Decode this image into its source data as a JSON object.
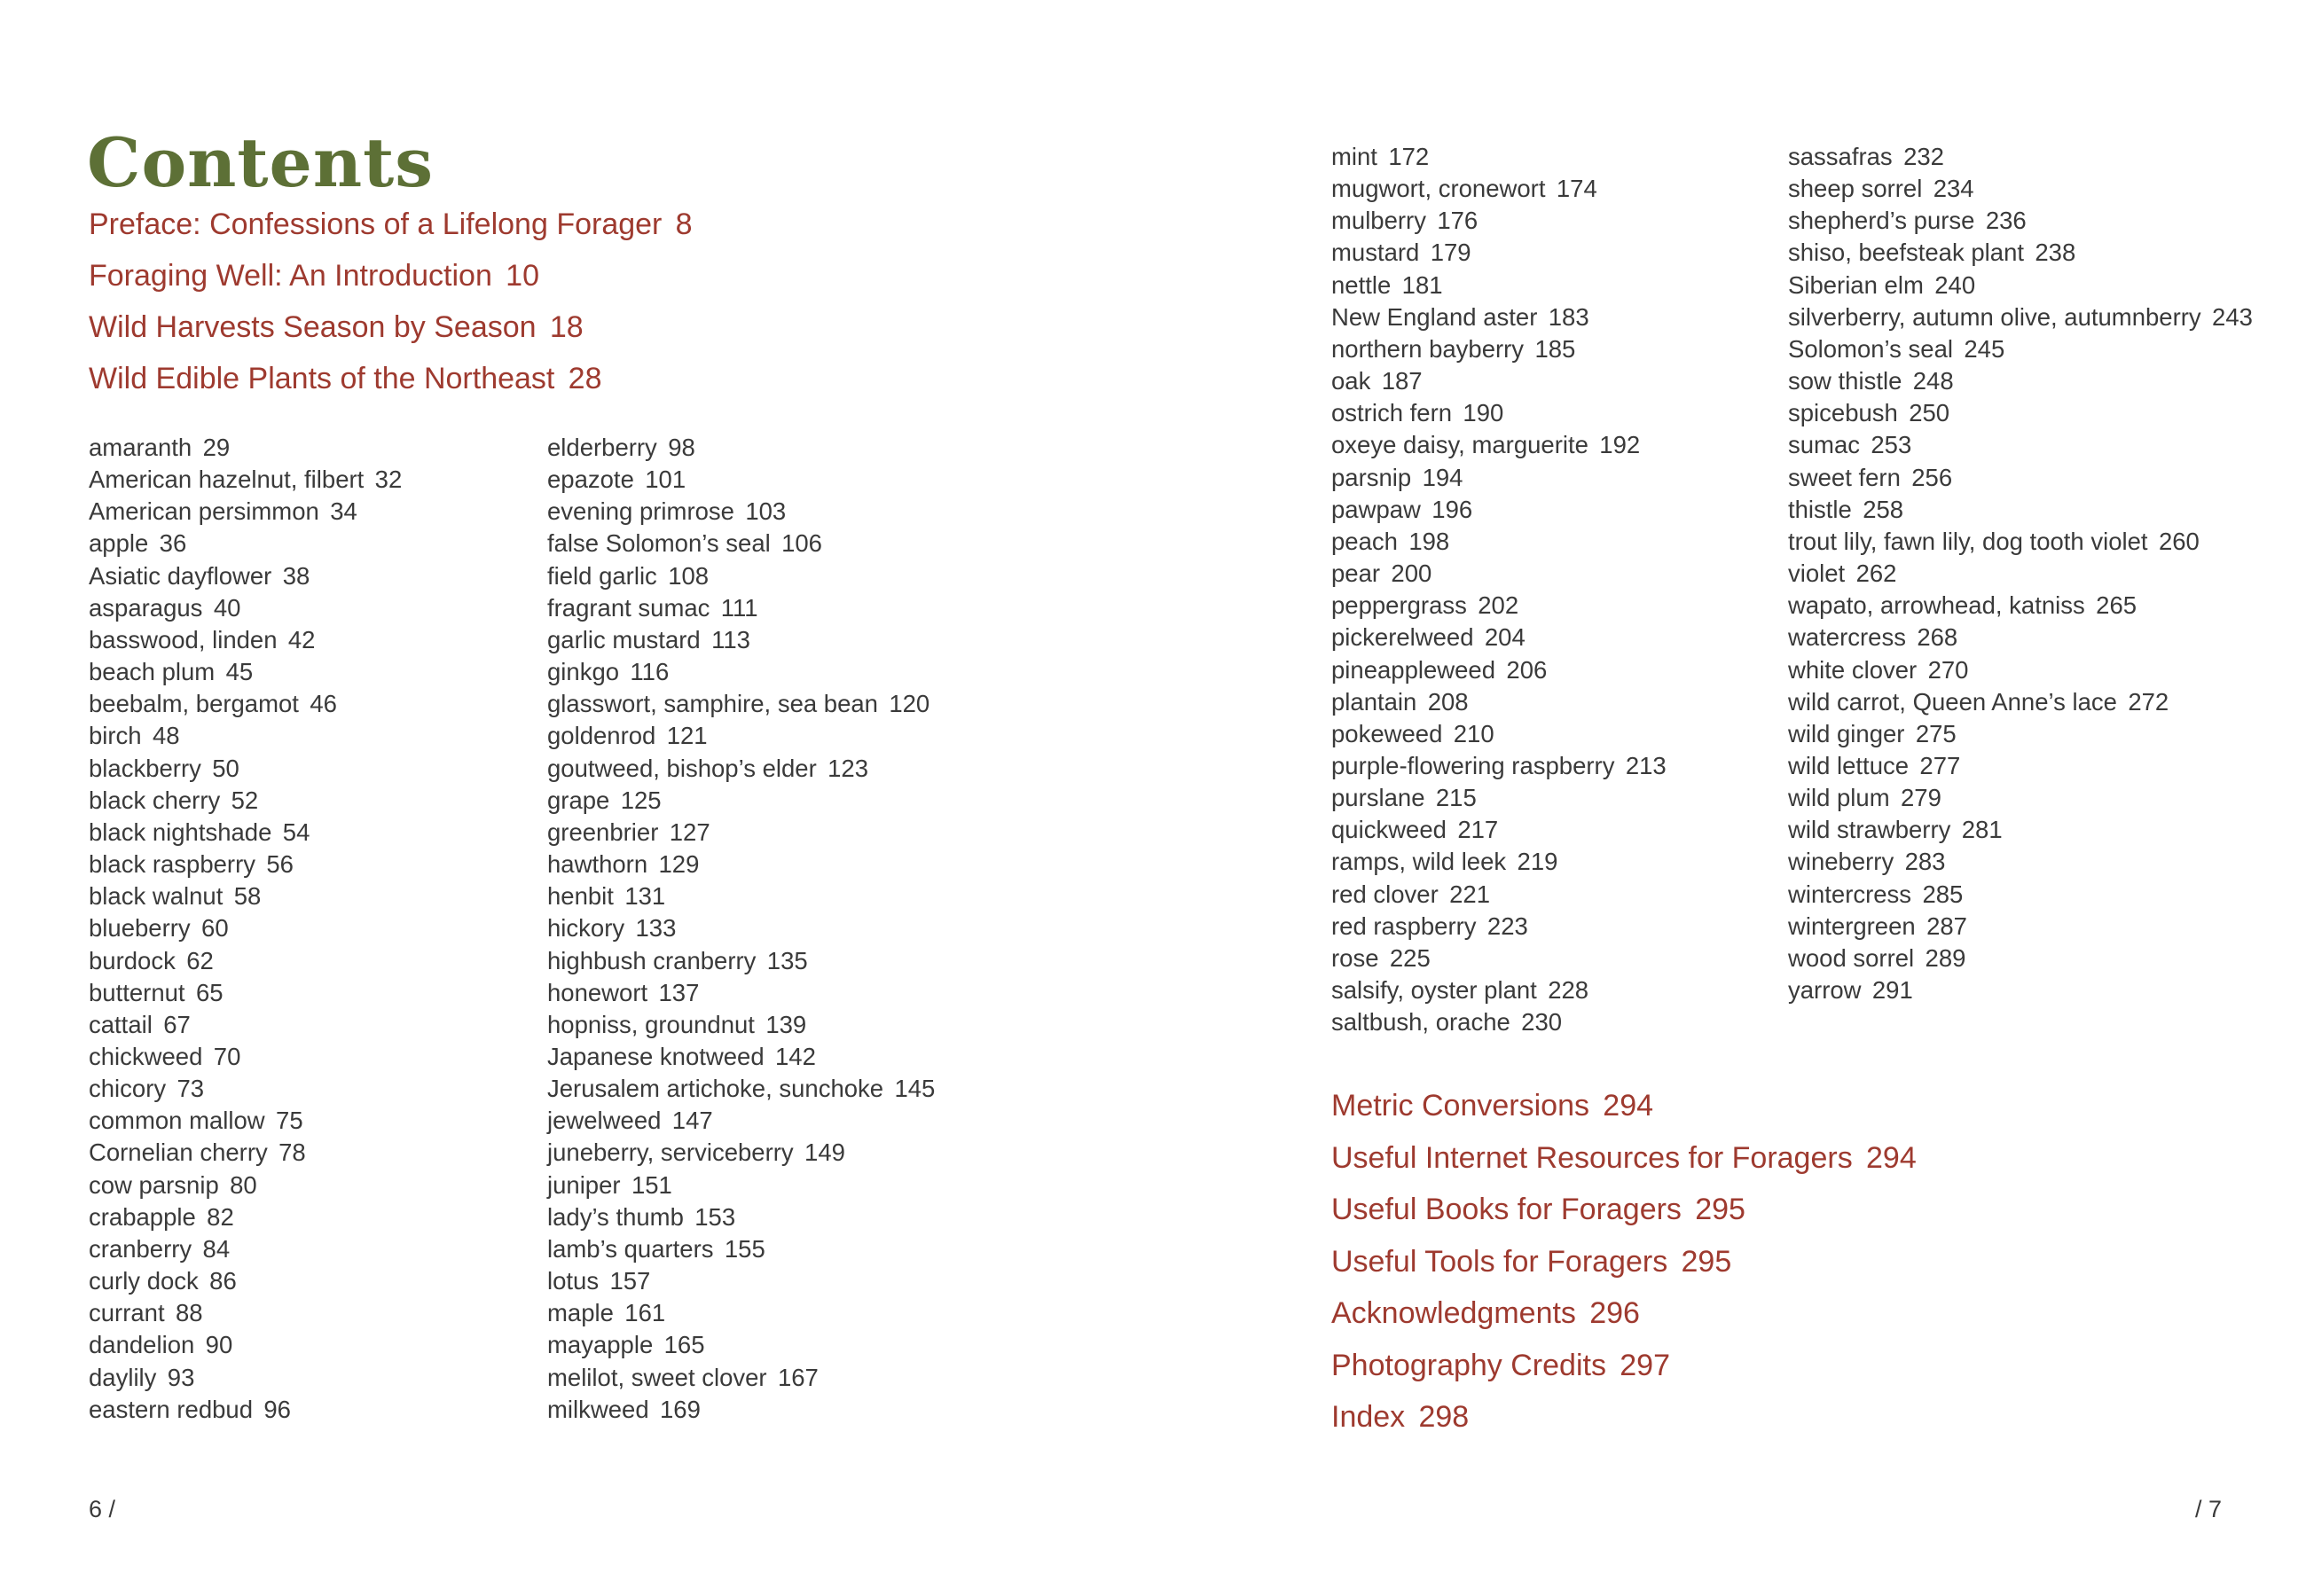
{
  "page": {
    "title": "Contents",
    "left_folio": "6 /",
    "right_folio": "/ 7",
    "colors": {
      "title_green": "#5d7036",
      "heading_red": "#9e3a2f",
      "body_text": "#3a3a3a",
      "background": "#ffffff"
    }
  },
  "front_matter": [
    {
      "name": "Preface: Confessions of a Lifelong Forager",
      "page": "8"
    },
    {
      "name": "Foraging Well: An Introduction",
      "page": "10"
    },
    {
      "name": "Wild Harvests Season by Season",
      "page": "18"
    },
    {
      "name": "Wild Edible Plants of the Northeast",
      "page": "28"
    }
  ],
  "entries_col1": [
    {
      "name": "amaranth",
      "page": "29"
    },
    {
      "name": "American hazelnut, filbert",
      "page": "32"
    },
    {
      "name": "American persimmon",
      "page": "34"
    },
    {
      "name": "apple",
      "page": "36"
    },
    {
      "name": "Asiatic dayflower",
      "page": "38"
    },
    {
      "name": "asparagus",
      "page": "40"
    },
    {
      "name": "basswood, linden",
      "page": "42"
    },
    {
      "name": "beach plum",
      "page": "45"
    },
    {
      "name": "beebalm, bergamot",
      "page": "46"
    },
    {
      "name": "birch",
      "page": "48"
    },
    {
      "name": "blackberry",
      "page": "50"
    },
    {
      "name": "black cherry",
      "page": "52"
    },
    {
      "name": "black nightshade",
      "page": "54"
    },
    {
      "name": "black raspberry",
      "page": "56"
    },
    {
      "name": "black walnut",
      "page": "58"
    },
    {
      "name": "blueberry",
      "page": "60"
    },
    {
      "name": "burdock",
      "page": "62"
    },
    {
      "name": "butternut",
      "page": "65"
    },
    {
      "name": "cattail",
      "page": "67"
    },
    {
      "name": "chickweed",
      "page": "70"
    },
    {
      "name": "chicory",
      "page": "73"
    },
    {
      "name": "common mallow",
      "page": "75"
    },
    {
      "name": "Cornelian cherry",
      "page": "78"
    },
    {
      "name": "cow parsnip",
      "page": "80"
    },
    {
      "name": "crabapple",
      "page": "82"
    },
    {
      "name": "cranberry",
      "page": "84"
    },
    {
      "name": "curly dock",
      "page": "86"
    },
    {
      "name": "currant",
      "page": "88"
    },
    {
      "name": "dandelion",
      "page": "90"
    },
    {
      "name": "daylily",
      "page": "93"
    },
    {
      "name": "eastern redbud",
      "page": "96"
    }
  ],
  "entries_col2": [
    {
      "name": "elderberry",
      "page": "98"
    },
    {
      "name": "epazote",
      "page": "101"
    },
    {
      "name": "evening primrose",
      "page": "103"
    },
    {
      "name": "false Solomon’s seal",
      "page": "106"
    },
    {
      "name": "field garlic",
      "page": "108"
    },
    {
      "name": "fragrant sumac",
      "page": "111"
    },
    {
      "name": "garlic mustard",
      "page": "113"
    },
    {
      "name": "ginkgo",
      "page": "116"
    },
    {
      "name": "glasswort, samphire, sea bean",
      "page": "120"
    },
    {
      "name": "goldenrod",
      "page": "121"
    },
    {
      "name": "goutweed, bishop’s elder",
      "page": "123"
    },
    {
      "name": "grape",
      "page": "125"
    },
    {
      "name": "greenbrier",
      "page": "127"
    },
    {
      "name": "hawthorn",
      "page": "129"
    },
    {
      "name": "henbit",
      "page": "131"
    },
    {
      "name": "hickory",
      "page": "133"
    },
    {
      "name": "highbush cranberry",
      "page": "135"
    },
    {
      "name": "honewort",
      "page": "137"
    },
    {
      "name": "hopniss, groundnut",
      "page": "139"
    },
    {
      "name": "Japanese knotweed",
      "page": "142"
    },
    {
      "name": "Jerusalem artichoke, sunchoke",
      "page": "145"
    },
    {
      "name": "jewelweed",
      "page": "147"
    },
    {
      "name": "juneberry, serviceberry",
      "page": "149"
    },
    {
      "name": "juniper",
      "page": "151"
    },
    {
      "name": "lady’s thumb",
      "page": "153"
    },
    {
      "name": "lamb’s quarters",
      "page": "155"
    },
    {
      "name": "lotus",
      "page": "157"
    },
    {
      "name": "maple",
      "page": "161"
    },
    {
      "name": "mayapple",
      "page": "165"
    },
    {
      "name": "melilot, sweet clover",
      "page": "167"
    },
    {
      "name": "milkweed",
      "page": "169"
    }
  ],
  "entries_col3": [
    {
      "name": "mint",
      "page": "172"
    },
    {
      "name": "mugwort, cronewort",
      "page": "174"
    },
    {
      "name": "mulberry",
      "page": "176"
    },
    {
      "name": "mustard",
      "page": "179"
    },
    {
      "name": "nettle",
      "page": "181"
    },
    {
      "name": "New England aster",
      "page": "183"
    },
    {
      "name": "northern bayberry",
      "page": "185"
    },
    {
      "name": "oak",
      "page": "187"
    },
    {
      "name": "ostrich fern",
      "page": "190"
    },
    {
      "name": "oxeye daisy, marguerite",
      "page": "192"
    },
    {
      "name": "parsnip",
      "page": "194"
    },
    {
      "name": "pawpaw",
      "page": "196"
    },
    {
      "name": "peach",
      "page": "198"
    },
    {
      "name": "pear",
      "page": "200"
    },
    {
      "name": "peppergrass",
      "page": "202"
    },
    {
      "name": "pickerelweed",
      "page": "204"
    },
    {
      "name": "pineappleweed",
      "page": "206"
    },
    {
      "name": "plantain",
      "page": "208"
    },
    {
      "name": "pokeweed",
      "page": "210"
    },
    {
      "name": "purple-flowering raspberry",
      "page": "213"
    },
    {
      "name": "purslane",
      "page": "215"
    },
    {
      "name": "quickweed",
      "page": "217"
    },
    {
      "name": "ramps, wild leek",
      "page": "219"
    },
    {
      "name": "red clover",
      "page": "221"
    },
    {
      "name": "red raspberry",
      "page": "223"
    },
    {
      "name": "rose",
      "page": "225"
    },
    {
      "name": "salsify, oyster plant",
      "page": "228"
    },
    {
      "name": "saltbush, orache",
      "page": "230"
    }
  ],
  "entries_col4": [
    {
      "name": "sassafras",
      "page": "232"
    },
    {
      "name": "sheep sorrel",
      "page": "234"
    },
    {
      "name": "shepherd’s purse",
      "page": "236"
    },
    {
      "name": "shiso, beefsteak plant",
      "page": "238"
    },
    {
      "name": "Siberian elm",
      "page": "240"
    },
    {
      "name": "silverberry, autumn olive, autumnberry",
      "page": "243"
    },
    {
      "name": "Solomon’s seal",
      "page": "245"
    },
    {
      "name": "sow thistle",
      "page": "248"
    },
    {
      "name": "spicebush",
      "page": "250"
    },
    {
      "name": "sumac",
      "page": "253"
    },
    {
      "name": "sweet fern",
      "page": "256"
    },
    {
      "name": "thistle",
      "page": "258"
    },
    {
      "name": "trout lily, fawn lily, dog tooth violet",
      "page": "260"
    },
    {
      "name": "violet",
      "page": "262"
    },
    {
      "name": "wapato, arrowhead, katniss",
      "page": "265"
    },
    {
      "name": "watercress",
      "page": "268"
    },
    {
      "name": "white clover",
      "page": "270"
    },
    {
      "name": "wild carrot, Queen Anne’s lace",
      "page": "272"
    },
    {
      "name": "wild ginger",
      "page": "275"
    },
    {
      "name": "wild lettuce",
      "page": "277"
    },
    {
      "name": "wild plum",
      "page": "279"
    },
    {
      "name": "wild strawberry",
      "page": "281"
    },
    {
      "name": "wineberry",
      "page": "283"
    },
    {
      "name": "wintercress",
      "page": "285"
    },
    {
      "name": "wintergreen",
      "page": "287"
    },
    {
      "name": "wood sorrel",
      "page": "289"
    },
    {
      "name": "yarrow",
      "page": "291"
    }
  ],
  "back_matter": [
    {
      "name": "Metric Conversions",
      "page": "294"
    },
    {
      "name": "Useful Internet Resources for Foragers",
      "page": "294"
    },
    {
      "name": "Useful Books for Foragers",
      "page": "295"
    },
    {
      "name": "Useful Tools for Foragers",
      "page": "295"
    },
    {
      "name": "Acknowledgments",
      "page": "296"
    },
    {
      "name": "Photography Credits",
      "page": "297"
    },
    {
      "name": "Index",
      "page": "298"
    }
  ]
}
